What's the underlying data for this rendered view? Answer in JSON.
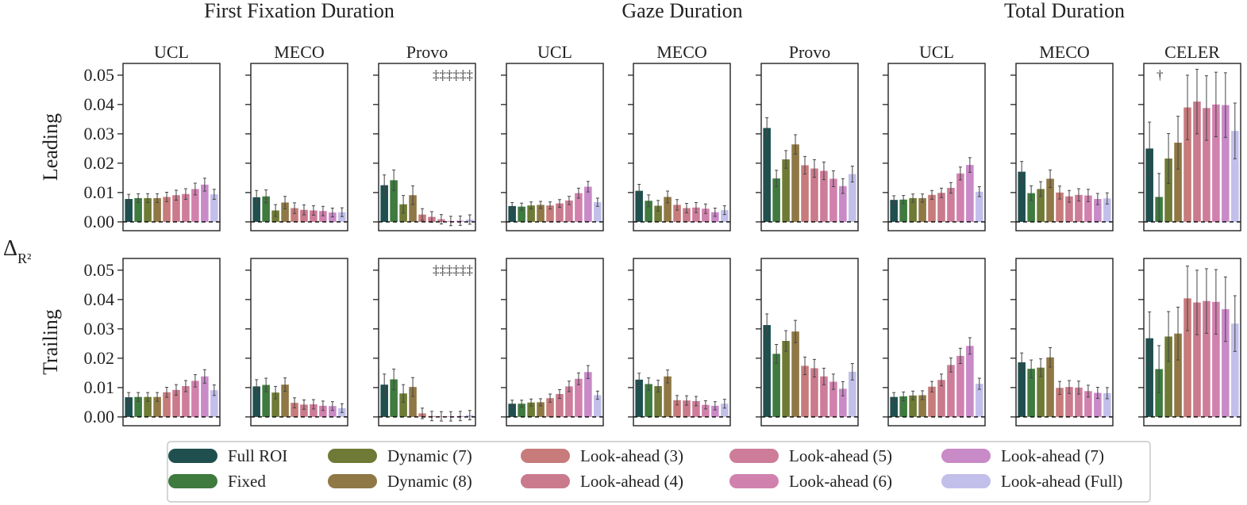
{
  "chart_data": {
    "type": "bar",
    "ylabel": "Δ",
    "ylabel_sub": "R²",
    "ylim": [
      -0.003,
      0.054
    ],
    "yticks": [
      "0.00",
      "0.01",
      "0.02",
      "0.03",
      "0.04",
      "0.05"
    ],
    "ytick_values": [
      0,
      0.01,
      0.02,
      0.03,
      0.04,
      0.05
    ],
    "zero_line": "dashed",
    "categories": [
      "Full ROI",
      "Fixed",
      "Dynamic (7)",
      "Dynamic (8)",
      "Look-ahead (3)",
      "Look-ahead (4)",
      "Look-ahead (5)",
      "Look-ahead (6)",
      "Look-ahead (7)",
      "Look-ahead (Full)"
    ],
    "colors": [
      "#1f4f4f",
      "#3f7a3f",
      "#6e7a35",
      "#8f7845",
      "#c77b7b",
      "#c97a8c",
      "#cd7d99",
      "#d181ae",
      "#c98ac8",
      "#c2c0ea"
    ],
    "groups": [
      {
        "title": "First Fixation Duration",
        "panels": [
          "UCL",
          "MECO",
          "Provo"
        ]
      },
      {
        "title": "Gaze Duration",
        "panels": [
          "UCL",
          "MECO",
          "Provo"
        ]
      },
      {
        "title": "Total Duration",
        "panels": [
          "UCL",
          "MECO",
          "CELER"
        ]
      }
    ],
    "rows": [
      "Leading",
      "Trailing"
    ],
    "panels": [
      {
        "row": "Leading",
        "group": "First Fixation Duration",
        "corpus": "UCL",
        "marker": "",
        "values": [
          0.0078,
          0.0081,
          0.0081,
          0.0081,
          0.0085,
          0.0091,
          0.0095,
          0.0112,
          0.0127,
          0.0094
        ],
        "errors": [
          0.0016,
          0.0015,
          0.0015,
          0.0015,
          0.0016,
          0.0017,
          0.0018,
          0.002,
          0.0022,
          0.0017
        ]
      },
      {
        "row": "Leading",
        "group": "First Fixation Duration",
        "corpus": "MECO",
        "marker": "",
        "values": [
          0.0084,
          0.0087,
          0.0039,
          0.0066,
          0.0047,
          0.0041,
          0.0039,
          0.0037,
          0.0032,
          0.0033
        ],
        "errors": [
          0.0023,
          0.0022,
          0.002,
          0.0021,
          0.0018,
          0.0017,
          0.0016,
          0.0016,
          0.0015,
          0.0015
        ]
      },
      {
        "row": "Leading",
        "group": "First Fixation Duration",
        "corpus": "Provo",
        "marker": "‡‡‡‡‡‡",
        "values": [
          0.0125,
          0.0142,
          0.006,
          0.0091,
          0.0025,
          0.0017,
          0.0009,
          0.0003,
          0.0004,
          0.0008
        ],
        "errors": [
          0.0035,
          0.0035,
          0.003,
          0.0032,
          0.002,
          0.0018,
          0.0016,
          0.0016,
          0.0016,
          0.0016
        ]
      },
      {
        "row": "Leading",
        "group": "Gaze Duration",
        "corpus": "UCL",
        "marker": "",
        "values": [
          0.0054,
          0.0052,
          0.0056,
          0.0058,
          0.0056,
          0.0063,
          0.0073,
          0.0098,
          0.012,
          0.0067
        ],
        "errors": [
          0.0012,
          0.0012,
          0.0012,
          0.0012,
          0.0012,
          0.0013,
          0.0014,
          0.0017,
          0.0018,
          0.0014
        ]
      },
      {
        "row": "Leading",
        "group": "Gaze Duration",
        "corpus": "MECO",
        "marker": "",
        "values": [
          0.0106,
          0.0072,
          0.0055,
          0.0085,
          0.0058,
          0.0047,
          0.0049,
          0.0045,
          0.0033,
          0.004
        ],
        "errors": [
          0.0022,
          0.002,
          0.0018,
          0.002,
          0.0018,
          0.0016,
          0.0017,
          0.0016,
          0.0014,
          0.0015
        ]
      },
      {
        "row": "Leading",
        "group": "Gaze Duration",
        "corpus": "Provo",
        "marker": "",
        "values": [
          0.032,
          0.0148,
          0.0213,
          0.0264,
          0.0193,
          0.0182,
          0.0174,
          0.0147,
          0.0122,
          0.0163
        ],
        "errors": [
          0.0035,
          0.0028,
          0.003,
          0.0033,
          0.003,
          0.003,
          0.003,
          0.0027,
          0.0025,
          0.0027
        ]
      },
      {
        "row": "Leading",
        "group": "Total Duration",
        "corpus": "UCL",
        "marker": "",
        "values": [
          0.0075,
          0.0076,
          0.0081,
          0.0081,
          0.0092,
          0.0099,
          0.0116,
          0.0165,
          0.0194,
          0.0103
        ],
        "errors": [
          0.0014,
          0.0014,
          0.0014,
          0.0014,
          0.0015,
          0.0016,
          0.0018,
          0.0022,
          0.0025,
          0.0017
        ]
      },
      {
        "row": "Leading",
        "group": "Total Duration",
        "corpus": "MECO",
        "marker": "",
        "values": [
          0.0171,
          0.0098,
          0.0112,
          0.0147,
          0.01,
          0.0087,
          0.0092,
          0.009,
          0.0078,
          0.008
        ],
        "errors": [
          0.0035,
          0.0025,
          0.0025,
          0.003,
          0.0022,
          0.002,
          0.0021,
          0.0021,
          0.0019,
          0.0019
        ]
      },
      {
        "row": "Leading",
        "group": "Total Duration",
        "corpus": "CELER",
        "marker": "†",
        "values": [
          0.025,
          0.0085,
          0.0216,
          0.027,
          0.039,
          0.041,
          0.0388,
          0.04,
          0.0398,
          0.031
        ],
        "errors": [
          0.009,
          0.008,
          0.0085,
          0.009,
          0.011,
          0.011,
          0.011,
          0.011,
          0.011,
          0.0095
        ]
      },
      {
        "row": "Trailing",
        "group": "First Fixation Duration",
        "corpus": "UCL",
        "marker": "",
        "values": [
          0.0067,
          0.0068,
          0.0068,
          0.0068,
          0.0084,
          0.0092,
          0.0105,
          0.0123,
          0.0138,
          0.0091
        ],
        "errors": [
          0.0016,
          0.0015,
          0.0015,
          0.0015,
          0.0017,
          0.0018,
          0.0019,
          0.0021,
          0.0023,
          0.0018
        ]
      },
      {
        "row": "Trailing",
        "group": "First Fixation Duration",
        "corpus": "MECO",
        "marker": "",
        "values": [
          0.0104,
          0.0109,
          0.0083,
          0.011,
          0.0048,
          0.0042,
          0.0043,
          0.0038,
          0.0037,
          0.003
        ],
        "errors": [
          0.0023,
          0.0023,
          0.0021,
          0.0023,
          0.0017,
          0.0016,
          0.0016,
          0.0016,
          0.0015,
          0.0015
        ]
      },
      {
        "row": "Trailing",
        "group": "First Fixation Duration",
        "corpus": "Provo",
        "marker": "‡‡‡‡‡‡",
        "values": [
          0.011,
          0.0128,
          0.008,
          0.0102,
          0.0012,
          0.0003,
          0.0002,
          0.0002,
          0.0003,
          0.0006
        ],
        "errors": [
          0.0036,
          0.0035,
          0.003,
          0.0032,
          0.0018,
          0.0016,
          0.0016,
          0.0016,
          0.0016,
          0.0016
        ]
      },
      {
        "row": "Trailing",
        "group": "Gaze Duration",
        "corpus": "UCL",
        "marker": "",
        "values": [
          0.0045,
          0.0045,
          0.0049,
          0.005,
          0.0064,
          0.0078,
          0.0104,
          0.013,
          0.0153,
          0.0074
        ],
        "errors": [
          0.0012,
          0.0012,
          0.0012,
          0.0012,
          0.0014,
          0.0015,
          0.0018,
          0.002,
          0.0022,
          0.0014
        ]
      },
      {
        "row": "Trailing",
        "group": "Gaze Duration",
        "corpus": "MECO",
        "marker": "",
        "values": [
          0.0127,
          0.0112,
          0.0105,
          0.0138,
          0.0057,
          0.0056,
          0.0054,
          0.0041,
          0.0038,
          0.0045
        ],
        "errors": [
          0.0022,
          0.0021,
          0.002,
          0.0022,
          0.0016,
          0.0016,
          0.0016,
          0.0014,
          0.0014,
          0.0015
        ]
      },
      {
        "row": "Trailing",
        "group": "Gaze Duration",
        "corpus": "Provo",
        "marker": "",
        "values": [
          0.0313,
          0.0215,
          0.0259,
          0.0291,
          0.0174,
          0.0166,
          0.0138,
          0.012,
          0.0096,
          0.0154
        ],
        "errors": [
          0.0038,
          0.0032,
          0.0035,
          0.0038,
          0.003,
          0.003,
          0.0028,
          0.0026,
          0.0024,
          0.0028
        ]
      },
      {
        "row": "Trailing",
        "group": "Total Duration",
        "corpus": "UCL",
        "marker": "",
        "values": [
          0.0068,
          0.007,
          0.0073,
          0.0074,
          0.0103,
          0.0126,
          0.0177,
          0.0208,
          0.0242,
          0.0113
        ],
        "errors": [
          0.0015,
          0.0015,
          0.0015,
          0.0015,
          0.0018,
          0.002,
          0.0024,
          0.0026,
          0.0028,
          0.0019
        ]
      },
      {
        "row": "Trailing",
        "group": "Total Duration",
        "corpus": "MECO",
        "marker": "",
        "values": [
          0.0186,
          0.0164,
          0.0168,
          0.0203,
          0.0099,
          0.0102,
          0.01,
          0.0088,
          0.0082,
          0.0081
        ],
        "errors": [
          0.0032,
          0.003,
          0.003,
          0.0033,
          0.0022,
          0.0022,
          0.0022,
          0.002,
          0.0019,
          0.0019
        ]
      },
      {
        "row": "Trailing",
        "group": "Total Duration",
        "corpus": "CELER",
        "marker": "",
        "values": [
          0.0268,
          0.0163,
          0.0274,
          0.0284,
          0.0404,
          0.039,
          0.0395,
          0.0392,
          0.0367,
          0.0318
        ],
        "errors": [
          0.009,
          0.008,
          0.0085,
          0.009,
          0.011,
          0.011,
          0.011,
          0.011,
          0.011,
          0.0095
        ]
      }
    ],
    "legend": {
      "placement": "bottom",
      "entries": [
        "Full ROI",
        "Fixed",
        "Dynamic (7)",
        "Dynamic (8)",
        "Look-ahead (3)",
        "Look-ahead (4)",
        "Look-ahead (5)",
        "Look-ahead (6)",
        "Look-ahead (7)",
        "Look-ahead (Full)"
      ]
    }
  }
}
